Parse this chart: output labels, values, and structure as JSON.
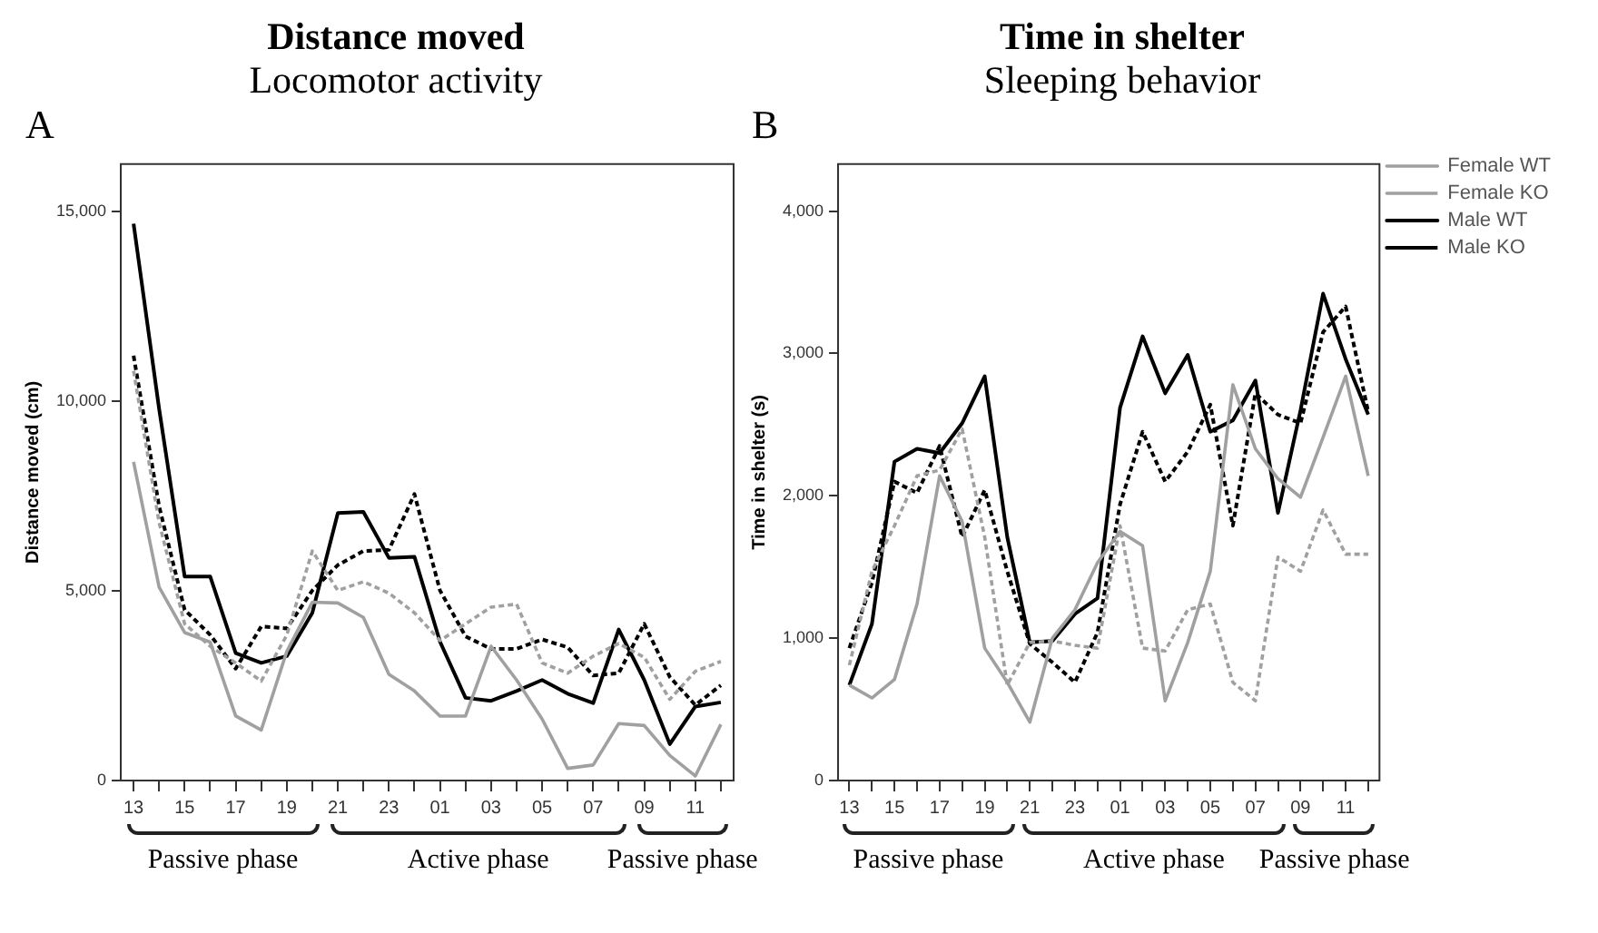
{
  "chart_data": [
    {
      "type": "line",
      "title": "Distance moved",
      "subtitle": "Locomotor activity",
      "ylabel": "Distance moved (cm)",
      "annotations": [
        "A",
        "Passive phase",
        "Active phase",
        "Passive phase"
      ],
      "categories": [
        "13",
        null,
        "15",
        null,
        "17",
        null,
        "19",
        null,
        "21",
        null,
        "23",
        null,
        "01",
        null,
        "03",
        null,
        "05",
        null,
        "07",
        null,
        "09",
        null,
        "11",
        null
      ],
      "ylim": [
        0,
        16250
      ],
      "yticks": [
        0,
        {
          "value": 5000,
          "label": "5,000"
        },
        {
          "value": 10000,
          "label": "10,000"
        },
        {
          "value": 15000,
          "label": "15,000"
        }
      ],
      "grid": false,
      "legend": false,
      "marker": "none",
      "series": [
        {
          "color": "#a0a0a0",
          "line_style": "solid",
          "values": [
            8400,
            5100,
            3900,
            3650,
            1700,
            1330,
            3400,
            4700,
            4680,
            4300,
            2800,
            2360,
            1700,
            1700,
            3540,
            2650,
            1620,
            320,
            410,
            1500,
            1450,
            660,
            120,
            1480
          ]
        },
        {
          "color": "#a0a0a0",
          "line_style": "dashed",
          "values": [
            10800,
            6800,
            4130,
            3540,
            3100,
            2620,
            3830,
            6050,
            5010,
            5240,
            4940,
            4420,
            3690,
            4130,
            4570,
            4650,
            3100,
            2830,
            3280,
            3610,
            3250,
            2140,
            2880,
            3140
          ]
        },
        {
          "color": "#000000",
          "line_style": "solid",
          "values": [
            14680,
            9800,
            5380,
            5380,
            3360,
            3100,
            3280,
            4420,
            7050,
            7080,
            5870,
            5900,
            3660,
            2180,
            2100,
            2360,
            2650,
            2290,
            2040,
            3980,
            2650,
            960,
            1950,
            2060
          ]
        },
        {
          "color": "#000000",
          "line_style": "dashed",
          "values": [
            11200,
            7230,
            4500,
            3840,
            2950,
            4060,
            4010,
            5010,
            5680,
            6050,
            6080,
            7550,
            5010,
            3800,
            3470,
            3470,
            3720,
            3510,
            2770,
            2830,
            4130,
            2730,
            1990,
            2510
          ]
        }
      ]
    },
    {
      "type": "line",
      "title": "Time in shelter",
      "subtitle": "Sleeping behavior",
      "ylabel": "Time in shelter (s)",
      "annotations": [
        "B",
        "Passive phase",
        "Active phase",
        "Passive phase"
      ],
      "categories": [
        "13",
        null,
        "15",
        null,
        "17",
        null,
        "19",
        null,
        "21",
        null,
        "23",
        null,
        "01",
        null,
        "03",
        null,
        "05",
        null,
        "07",
        null,
        "09",
        null,
        "11",
        null
      ],
      "ylim": [
        0,
        4330
      ],
      "yticks": [
        0,
        {
          "value": 1000,
          "label": "1,000"
        },
        {
          "value": 2000,
          "label": "2,000"
        },
        {
          "value": 3000,
          "label": "3,000"
        },
        {
          "value": 4000,
          "label": "4,000"
        }
      ],
      "grid": false,
      "legend": "top right",
      "marker": "none",
      "series": [
        {
          "name": "Female WT",
          "color": "#a0a0a0",
          "line_style": "solid",
          "values": [
            670,
            580,
            710,
            1240,
            2140,
            1820,
            930,
            690,
            410,
            1000,
            1200,
            1530,
            1750,
            1650,
            560,
            970,
            1470,
            2780,
            2330,
            2120,
            1990,
            2410,
            2840,
            2140
          ]
        },
        {
          "name": "Female KO",
          "color": "#a0a0a0",
          "line_style": "dashed",
          "values": [
            810,
            1470,
            1790,
            2140,
            2180,
            2470,
            1710,
            670,
            970,
            980,
            950,
            930,
            1790,
            930,
            910,
            1200,
            1240,
            690,
            560,
            1570,
            1470,
            1900,
            1590,
            1590
          ]
        },
        {
          "name": "Male WT",
          "color": "#000000",
          "line_style": "solid",
          "values": [
            670,
            1100,
            2240,
            2330,
            2300,
            2510,
            2840,
            1710,
            970,
            980,
            1170,
            1280,
            2620,
            3120,
            2720,
            2990,
            2450,
            2530,
            2810,
            1880,
            2600,
            3420,
            2960,
            2570
          ]
        },
        {
          "name": "Male KO",
          "color": "#000000",
          "line_style": "dashed",
          "values": [
            930,
            1390,
            2100,
            2020,
            2350,
            1710,
            2040,
            1470,
            960,
            830,
            690,
            1040,
            1940,
            2450,
            2100,
            2310,
            2640,
            1790,
            2720,
            2570,
            2510,
            3150,
            3330,
            2590
          ]
        }
      ]
    }
  ]
}
